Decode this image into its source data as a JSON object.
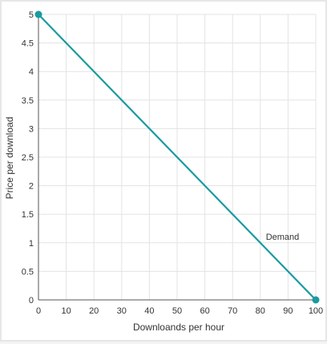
{
  "chart_data": {
    "type": "line",
    "title": "",
    "xlabel": "Downloands per hour",
    "ylabel": "Price per download",
    "xlim": [
      0,
      100
    ],
    "ylim": [
      0,
      5
    ],
    "x_ticks": [
      0,
      10,
      20,
      30,
      40,
      50,
      60,
      70,
      80,
      90,
      100
    ],
    "y_ticks": [
      0,
      0.5,
      1,
      1.5,
      2,
      2.5,
      3,
      3.5,
      4,
      4.5,
      5
    ],
    "x_tick_labels": [
      "0",
      "10",
      "20",
      "30",
      "40",
      "50",
      "60",
      "70",
      "80",
      "90",
      "100"
    ],
    "y_tick_labels": [
      "0",
      "0.5",
      "1",
      "1.5",
      "2",
      "2.5",
      "3",
      "3.5",
      "4",
      "4.5",
      "5"
    ],
    "grid": true,
    "series": [
      {
        "name": "Demand",
        "color": "#1a9aa0",
        "points": [
          {
            "x": 0,
            "y": 5
          },
          {
            "x": 100,
            "y": 0
          }
        ]
      }
    ],
    "annotations": [
      {
        "text": "Demand",
        "x": 88,
        "y": 1.05
      }
    ]
  }
}
